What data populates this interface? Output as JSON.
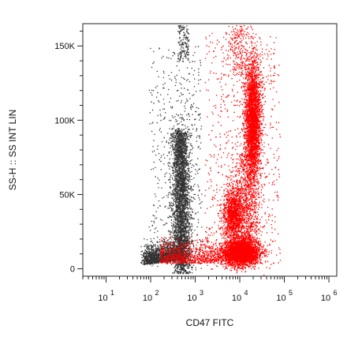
{
  "chart_data": {
    "type": "scatter",
    "title": "",
    "xlabel": "CD47 FITC",
    "ylabel": "SS-H :: SS INT LIN",
    "x_scale": "log",
    "xlim": [
      3,
      1500000
    ],
    "ylim": [
      -5000,
      165000
    ],
    "x_ticks": [
      {
        "value": 10,
        "base": "10",
        "exp": "1"
      },
      {
        "value": 100,
        "base": "10",
        "exp": "2"
      },
      {
        "value": 1000,
        "base": "10",
        "exp": "3"
      },
      {
        "value": 10000,
        "base": "10",
        "exp": "4"
      },
      {
        "value": 100000,
        "base": "10",
        "exp": "5"
      },
      {
        "value": 1000000,
        "base": "10",
        "exp": "6"
      }
    ],
    "y_ticks": [
      {
        "value": 0,
        "label": "0"
      },
      {
        "value": 50000,
        "label": "50K"
      },
      {
        "value": 100000,
        "label": "100K"
      },
      {
        "value": 150000,
        "label": "150K"
      }
    ],
    "grid": false,
    "legend": "none",
    "series": [
      {
        "color": "#333333",
        "description_points": [
          {
            "x": 500,
            "y": 95000
          },
          {
            "x": 500,
            "y": 40000
          },
          {
            "x": 150,
            "y": 8000
          }
        ]
      },
      {
        "color": "#ff0000",
        "description_points": [
          {
            "x": 18000,
            "y": 100000
          },
          {
            "x": 10000,
            "y": 12000
          },
          {
            "x": 6000,
            "y": 40000
          }
        ]
      }
    ]
  }
}
